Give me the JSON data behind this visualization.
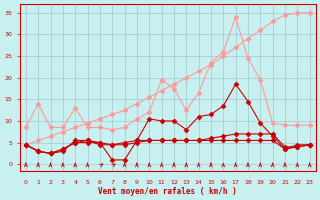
{
  "background_color": "#c8f0f0",
  "grid_color": "#a0c8c8",
  "line_color_dark": "#cc0000",
  "line_color_light": "#ff9999",
  "xlabel": "Vent moyen/en rafales ( km/h )",
  "ylim": [
    -1.5,
    37
  ],
  "xlim": [
    -0.5,
    23.5
  ],
  "yticks": [
    0,
    5,
    10,
    15,
    20,
    25,
    30,
    35
  ],
  "xticks": [
    0,
    1,
    2,
    3,
    4,
    5,
    6,
    7,
    8,
    9,
    10,
    11,
    12,
    13,
    14,
    15,
    16,
    17,
    18,
    19,
    20,
    21,
    22,
    23
  ],
  "x": [
    0,
    1,
    2,
    3,
    4,
    5,
    6,
    7,
    8,
    9,
    10,
    11,
    12,
    13,
    14,
    15,
    16,
    17,
    18,
    19,
    20,
    21,
    22,
    23
  ],
  "series": {
    "light_diagonal": [
      4.5,
      5.5,
      6.5,
      7.5,
      8.5,
      9.5,
      10.5,
      11.5,
      12.5,
      14.0,
      15.5,
      17.0,
      18.5,
      20.0,
      21.5,
      23.0,
      25.0,
      27.0,
      29.0,
      31.0,
      33.0,
      34.5,
      35.0,
      35.0
    ],
    "light_wavy": [
      8.5,
      14.0,
      8.5,
      8.5,
      13.0,
      8.5,
      8.5,
      8.0,
      8.5,
      10.5,
      12.0,
      19.5,
      17.5,
      12.5,
      16.5,
      23.5,
      26.0,
      34.0,
      24.5,
      19.5,
      9.5,
      9.0,
      9.0,
      9.0
    ],
    "dark1": [
      4.5,
      3.0,
      2.5,
      3.0,
      5.5,
      5.5,
      4.5,
      4.5,
      5.0,
      5.5,
      10.5,
      10.0,
      10.0,
      8.0,
      11.0,
      11.5,
      13.5,
      18.5,
      14.5,
      9.5,
      6.5,
      3.5,
      4.5,
      4.5
    ],
    "dark2": [
      4.5,
      3.0,
      2.5,
      3.5,
      5.0,
      5.5,
      5.0,
      1.0,
      1.0,
      5.5,
      5.5,
      5.5,
      5.5,
      5.5,
      5.5,
      5.5,
      5.5,
      5.5,
      5.5,
      5.5,
      5.5,
      3.5,
      4.0,
      4.5
    ],
    "dark3": [
      4.5,
      3.0,
      2.5,
      3.5,
      5.0,
      5.0,
      5.0,
      4.5,
      4.5,
      5.0,
      5.5,
      5.5,
      5.5,
      5.5,
      5.5,
      6.0,
      6.5,
      7.0,
      7.0,
      7.0,
      7.0,
      4.0,
      4.0,
      4.5
    ]
  },
  "arrow_directions": [
    0,
    0,
    0,
    0,
    0,
    0,
    1,
    1,
    0,
    0,
    0,
    0,
    0,
    0,
    0,
    0,
    0,
    0,
    0,
    0,
    0,
    0,
    0,
    0
  ]
}
